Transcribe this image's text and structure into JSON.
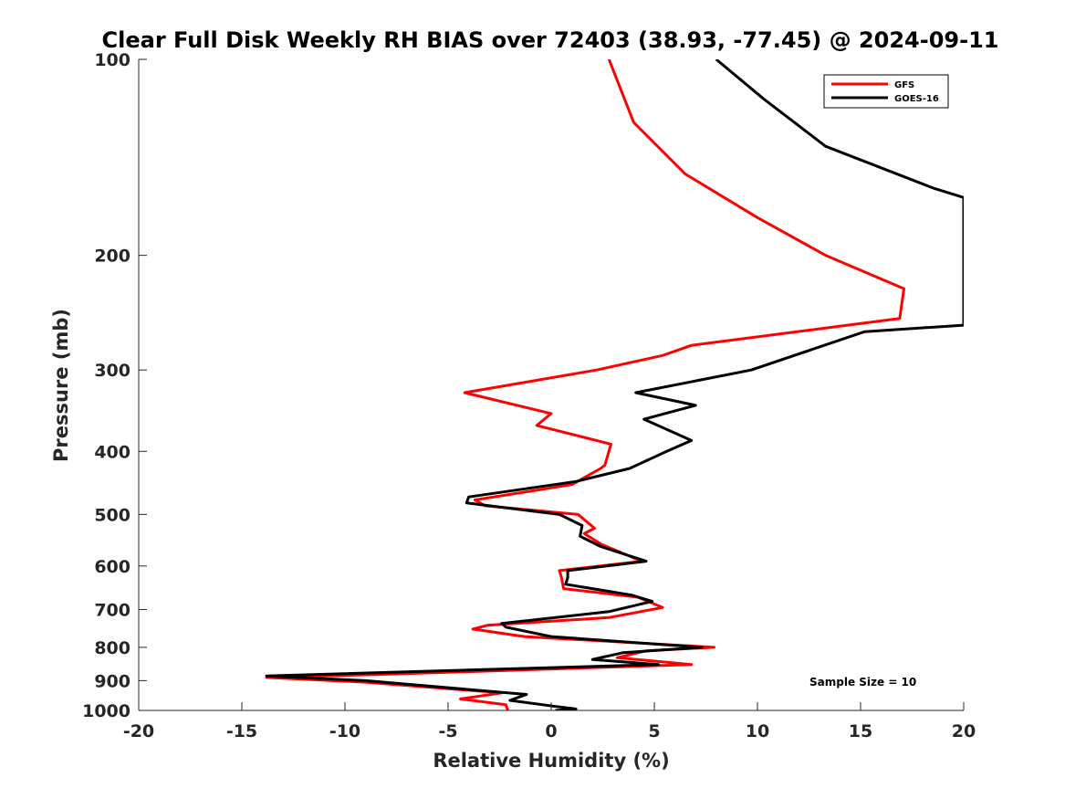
{
  "chart_data": {
    "type": "line",
    "title": "Clear Full Disk Weekly RH BIAS over 72403 (38.93, -77.45) @ 2024-09-11",
    "xlabel": "Relative Humidity (%)",
    "ylabel": "Pressure (mb)",
    "xlim": [
      -20,
      20
    ],
    "ylim": [
      100,
      1000
    ],
    "y_scale": "log",
    "y_reversed": true,
    "grid": false,
    "legend_position": "top-right",
    "x_ticks": [
      "-20",
      "-15",
      "-10",
      "-5",
      "0",
      "5",
      "10",
      "15",
      "20"
    ],
    "y_ticks": [
      "100",
      "200",
      "300",
      "400",
      "500",
      "600",
      "700",
      "800",
      "900",
      "1000"
    ],
    "annotation": "Sample Size = 10",
    "series": [
      {
        "name": "GFS",
        "color": "#ff0000",
        "points": [
          [
            2.8,
            100
          ],
          [
            4.0,
            125
          ],
          [
            6.5,
            150
          ],
          [
            10.0,
            175
          ],
          [
            13.3,
            200
          ],
          [
            17.1,
            225
          ],
          [
            16.9,
            250
          ],
          [
            6.8,
            275
          ],
          [
            5.4,
            285
          ],
          [
            2.2,
            300
          ],
          [
            -4.2,
            325
          ],
          [
            0.0,
            350
          ],
          [
            -0.7,
            365
          ],
          [
            2.9,
            390
          ],
          [
            2.6,
            420
          ],
          [
            2.4,
            425
          ],
          [
            1.0,
            450
          ],
          [
            -3.7,
            475
          ],
          [
            -3.2,
            485
          ],
          [
            1.3,
            500
          ],
          [
            2.1,
            525
          ],
          [
            1.6,
            535
          ],
          [
            2.4,
            555
          ],
          [
            4.4,
            590
          ],
          [
            0.4,
            610
          ],
          [
            0.5,
            625
          ],
          [
            0.6,
            650
          ],
          [
            4.2,
            670
          ],
          [
            5.4,
            695
          ],
          [
            2.8,
            720
          ],
          [
            -3.1,
            740
          ],
          [
            -3.8,
            750
          ],
          [
            -1.3,
            770
          ],
          [
            7.9,
            800
          ],
          [
            4.6,
            810
          ],
          [
            3.2,
            830
          ],
          [
            6.8,
            850
          ],
          [
            -8.0,
            880
          ],
          [
            -13.8,
            890
          ],
          [
            -9.0,
            905
          ],
          [
            -2.4,
            940
          ],
          [
            -4.4,
            960
          ],
          [
            -2.2,
            980
          ],
          [
            -2.1,
            1000
          ]
        ]
      },
      {
        "name": "GOES-16",
        "color": "#000000",
        "points": [
          [
            8.0,
            100
          ],
          [
            10.3,
            115
          ],
          [
            13.3,
            136
          ],
          [
            18.6,
            158
          ],
          [
            20.0,
            163
          ],
          [
            20.0,
            256
          ],
          [
            15.2,
            262
          ],
          [
            9.7,
            300
          ],
          [
            4.1,
            325
          ],
          [
            7.0,
            340
          ],
          [
            4.5,
            357
          ],
          [
            6.8,
            385
          ],
          [
            5.6,
            400
          ],
          [
            3.8,
            425
          ],
          [
            1.2,
            445
          ],
          [
            -4.0,
            470
          ],
          [
            -4.1,
            480
          ],
          [
            0.4,
            500
          ],
          [
            1.5,
            520
          ],
          [
            1.4,
            540
          ],
          [
            2.4,
            560
          ],
          [
            4.6,
            590
          ],
          [
            0.8,
            610
          ],
          [
            0.8,
            625
          ],
          [
            0.7,
            640
          ],
          [
            3.9,
            665
          ],
          [
            4.9,
            680
          ],
          [
            2.8,
            705
          ],
          [
            -2.4,
            735
          ],
          [
            -2.2,
            745
          ],
          [
            0.0,
            770
          ],
          [
            7.3,
            800
          ],
          [
            3.5,
            815
          ],
          [
            2.0,
            835
          ],
          [
            5.2,
            850
          ],
          [
            -13.8,
            885
          ],
          [
            -9.0,
            900
          ],
          [
            -1.2,
            945
          ],
          [
            -2.0,
            965
          ],
          [
            0.1,
            985
          ],
          [
            1.2,
            995
          ],
          [
            0.2,
            1000
          ]
        ]
      }
    ]
  }
}
